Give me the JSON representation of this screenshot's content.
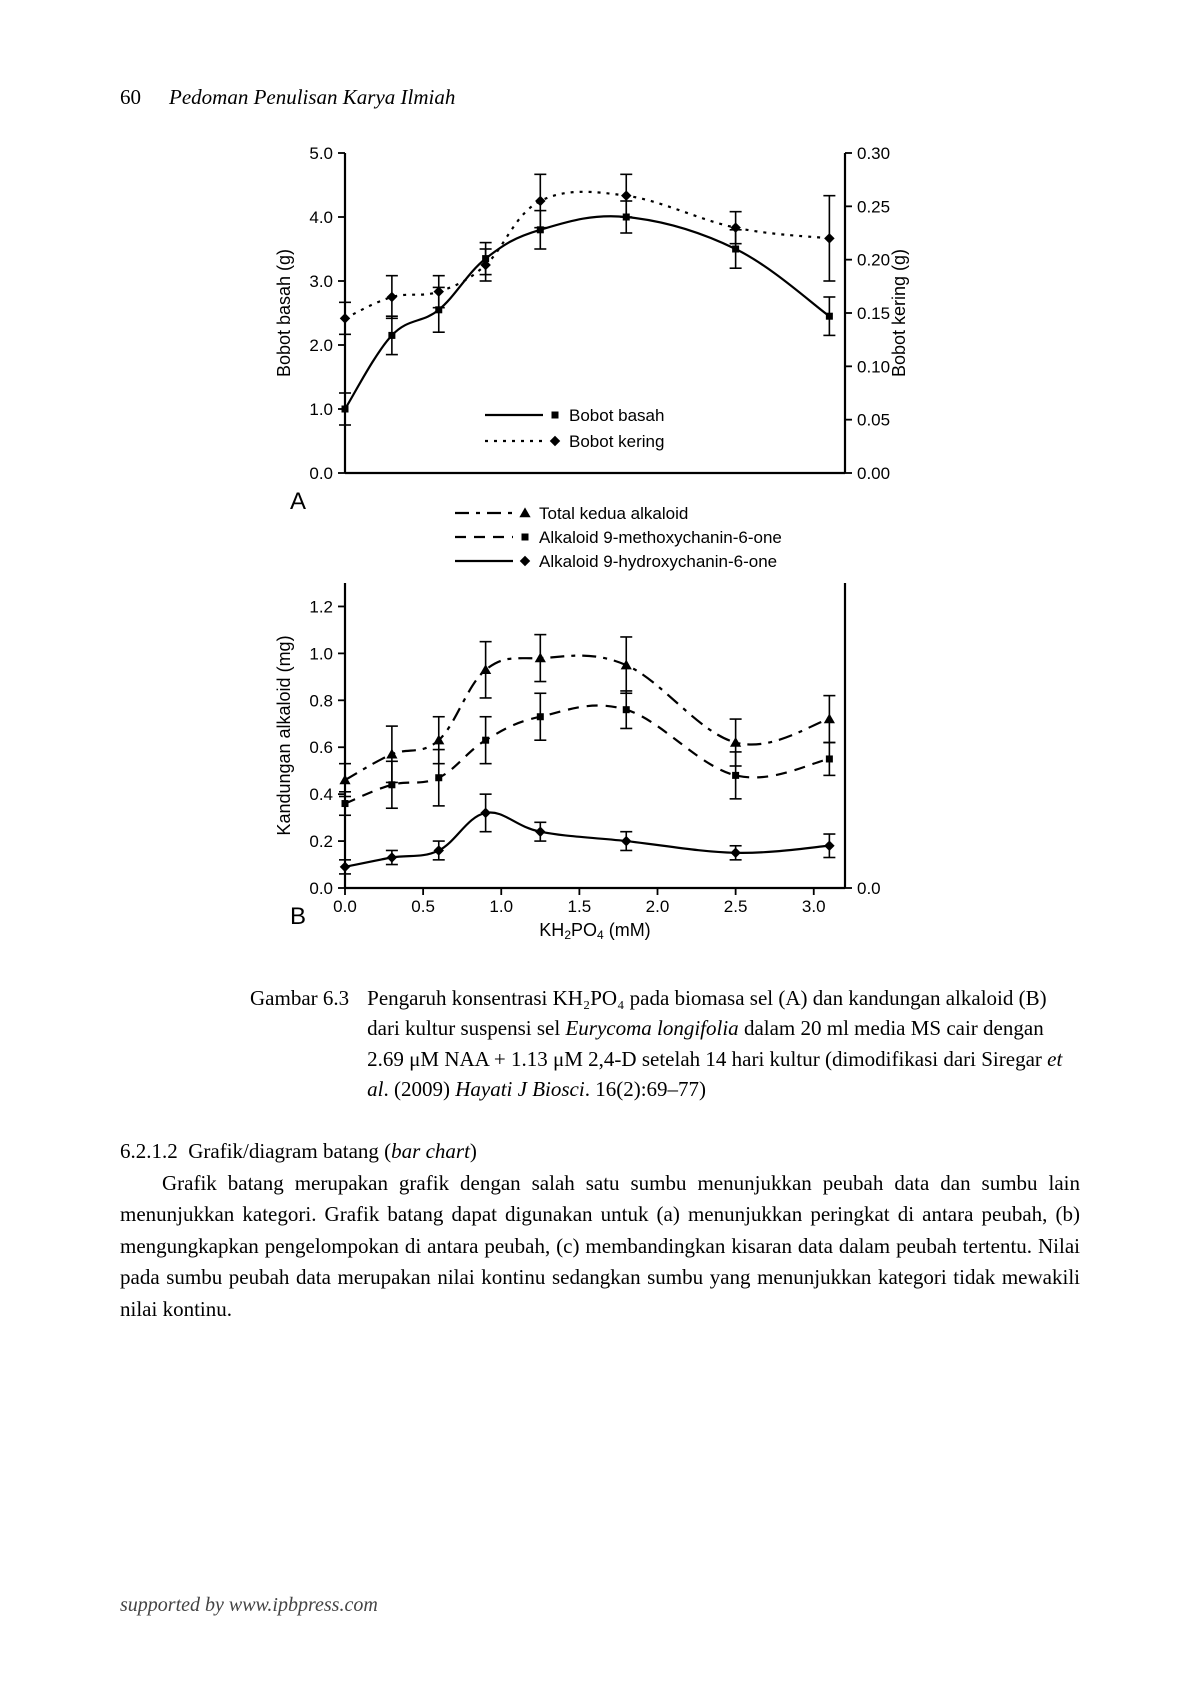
{
  "header": {
    "page_number": "60",
    "running_title": "Pedoman Penulisan Karya Ilmiah"
  },
  "figure": {
    "panelA": {
      "type": "line-dual-axis",
      "label": "A",
      "x": [
        0.0,
        0.3,
        0.6,
        0.9,
        1.25,
        1.8,
        2.5,
        3.1
      ],
      "series_basah": {
        "name": "Bobot basah",
        "values": [
          1.0,
          2.15,
          2.55,
          3.35,
          3.8,
          4.0,
          3.5,
          2.45
        ],
        "err": [
          0.25,
          0.3,
          0.35,
          0.25,
          0.3,
          0.25,
          0.3,
          0.3
        ],
        "marker": "square",
        "dash": "solid"
      },
      "series_kering": {
        "name": "Bobot kering",
        "axis": "right",
        "values": [
          0.145,
          0.165,
          0.17,
          0.195,
          0.255,
          0.26,
          0.23,
          0.22
        ],
        "err": [
          0.015,
          0.02,
          0.015,
          0.015,
          0.025,
          0.02,
          0.015,
          0.04
        ],
        "marker": "diamond",
        "dash": "dotted"
      },
      "y_left": {
        "label": "Bobot basah (g)",
        "min": 0.0,
        "max": 5.0,
        "step": 1.0,
        "ticks": [
          "0.0",
          "1.0",
          "2.0",
          "3.0",
          "4.0",
          "5.0"
        ]
      },
      "y_right": {
        "label": "Bobot kering (g)",
        "min": 0.0,
        "max": 0.3,
        "step": 0.05,
        "ticks": [
          "0.00",
          "0.05",
          "0.10",
          "0.15",
          "0.20",
          "0.25",
          "0.30"
        ]
      },
      "legend": {
        "items": [
          "Bobot basah",
          "Bobot kering"
        ]
      }
    },
    "panelB": {
      "type": "line",
      "label": "B",
      "x": [
        0.0,
        0.3,
        0.6,
        0.9,
        1.25,
        1.8,
        2.5,
        3.1
      ],
      "xticks": [
        "0.0",
        "0.5",
        "1.0",
        "1.5",
        "2.0",
        "2.5",
        "3.0"
      ],
      "xlabel": "KH₂PO₄ (mM)",
      "y": {
        "label": "Kandungan alkaloid (mg)",
        "min": 0.0,
        "max": 1.3,
        "step": 0.2,
        "ticks": [
          "0.0",
          "0.2",
          "0.4",
          "0.6",
          "0.8",
          "1.0",
          "1.2"
        ]
      },
      "y_right_extra_tick": "0.0",
      "series_total": {
        "name": "Total kedua alkaloid",
        "values": [
          0.46,
          0.57,
          0.63,
          0.93,
          0.98,
          0.95,
          0.62,
          0.72
        ],
        "err": [
          0.07,
          0.12,
          0.1,
          0.12,
          0.1,
          0.12,
          0.1,
          0.1
        ],
        "marker": "triangle",
        "dash": "dashdot"
      },
      "series_methoxy": {
        "name": "Alkaloid 9-methoxychanin-6-one",
        "values": [
          0.36,
          0.44,
          0.47,
          0.63,
          0.73,
          0.76,
          0.48,
          0.55
        ],
        "err": [
          0.05,
          0.1,
          0.12,
          0.1,
          0.1,
          0.08,
          0.1,
          0.07
        ],
        "marker": "square",
        "dash": "dashed"
      },
      "series_hydroxy": {
        "name": "Alkaloid 9-hydroxychanin-6-one",
        "values": [
          0.09,
          0.13,
          0.16,
          0.32,
          0.24,
          0.2,
          0.15,
          0.18
        ],
        "err": [
          0.03,
          0.03,
          0.04,
          0.08,
          0.04,
          0.04,
          0.03,
          0.05
        ],
        "marker": "diamond",
        "dash": "solid"
      },
      "legend": {
        "items": [
          "Total kedua alkaloid",
          "Alkaloid 9-methoxychanin-6-one",
          "Alkaloid 9-hydroxychanin-6-one"
        ]
      }
    },
    "caption_label": "Gambar 6.3",
    "caption_html": "Pengaruh konsentrasi KH₂PO₄ pada biomasa sel (A) dan kandungan alkaloid (B) dari kultur suspensi sel <span class=\"ital\">Eurycoma longifolia</span> dalam 20 ml media MS cair dengan 2.69 μM NAA + 1.13 μM 2,4-D setelah 14 hari kultur (dimodifikasi dari Siregar <span class=\"ital\">et al</span>. (2009) <span class=\"ital\">Hayati J Biosci</span>. 16(2):69–77)",
    "style": {
      "stroke": "#000000",
      "line_width": 2.2,
      "marker_size": 7,
      "err_cap": 6,
      "font_axis": 17,
      "font_label": 18,
      "font_legend": 17,
      "font_panel_label": 24
    }
  },
  "section": {
    "number": "6.2.1.2",
    "title_plain": "Grafik/diagram batang",
    "title_paren_ital": "bar chart",
    "paragraph": "Grafik batang merupakan grafik dengan salah satu sumbu menunjukkan peubah data dan sumbu lain menunjukkan kategori. Grafik batang dapat digunakan untuk (a) menunjukkan peringkat di antara peubah, (b) mengungkapkan pengelompokan di antara peubah, (c) membandingkan kisaran data dalam peubah tertentu. Nilai pada sumbu peubah data merupakan nilai kontinu sedangkan sumbu yang menunjukkan kategori tidak mewakili nilai kontinu."
  },
  "footer": "supported by www.ipbpress.com"
}
